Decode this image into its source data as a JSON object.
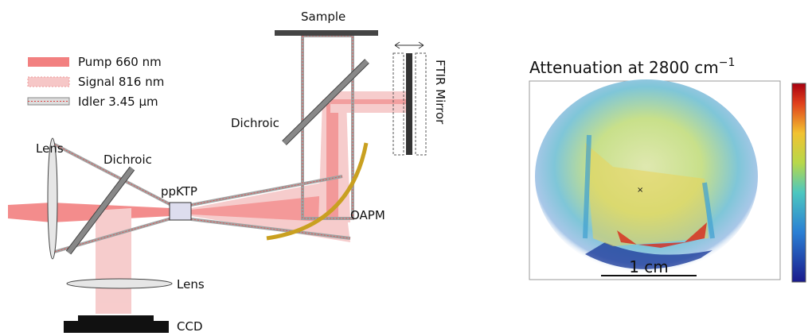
{
  "diagram": {
    "legend": [
      "Pump 660 nm",
      "Signal 816 nm",
      "Idler 3.45 µm"
    ],
    "labels": {
      "sample": "Sample",
      "ftir_mirror": "FTIR Mirror",
      "dichroic_top": "Dichroic",
      "dichroic_left": "Dichroic",
      "lens_left": "Lens",
      "lens_bottom": "Lens",
      "crystal": "ppKTP",
      "oapm": "OAPM",
      "ccd": "CCD"
    }
  },
  "image": {
    "title": "Attenuation at 2800 cm",
    "title_superscript": "−1",
    "scale_bar": "1 cm"
  }
}
